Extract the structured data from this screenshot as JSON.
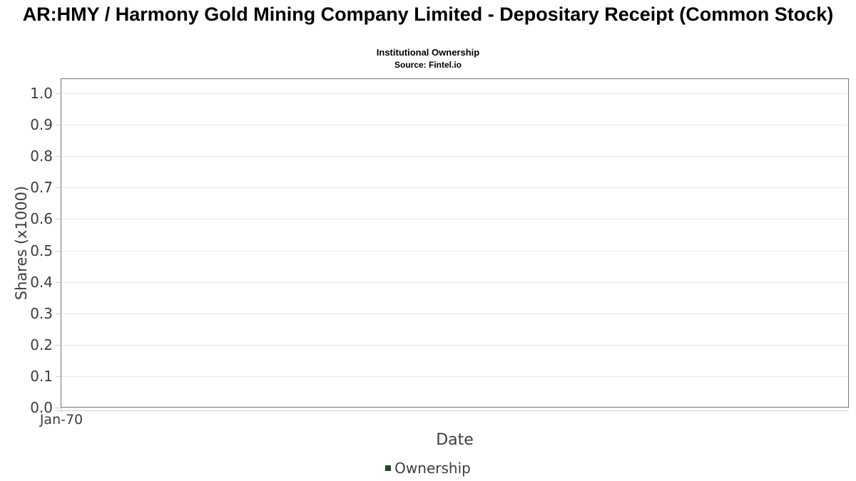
{
  "colors": {
    "series_green": "#1f4e23",
    "plot_border": "#757575",
    "gridline": "#e8e8e8",
    "tick": "#cfcfcf",
    "axis_text": "#3d3d3d",
    "title_text": "#000000",
    "background": "#ffffff"
  },
  "chart_data": {
    "type": "line",
    "title": "AR:HMY / Harmony Gold Mining Company Limited - Depositary Receipt (Common Stock)",
    "subtitle": "Institutional Ownership",
    "source": "Source: Fintel.io",
    "xlabel": "Date",
    "ylabel": "Shares (x1000)",
    "xticks": [
      "Jan-70"
    ],
    "yticks": [
      "0.0",
      "0.1",
      "0.2",
      "0.3",
      "0.4",
      "0.5",
      "0.6",
      "0.7",
      "0.8",
      "0.9",
      "1.0"
    ],
    "ylim": [
      0.0,
      1.045
    ],
    "grid": "horizontal-only",
    "legend_position": "bottom-center",
    "series": [
      {
        "name": "Ownership",
        "color": "#1f4e23",
        "x": [],
        "values": []
      }
    ]
  }
}
